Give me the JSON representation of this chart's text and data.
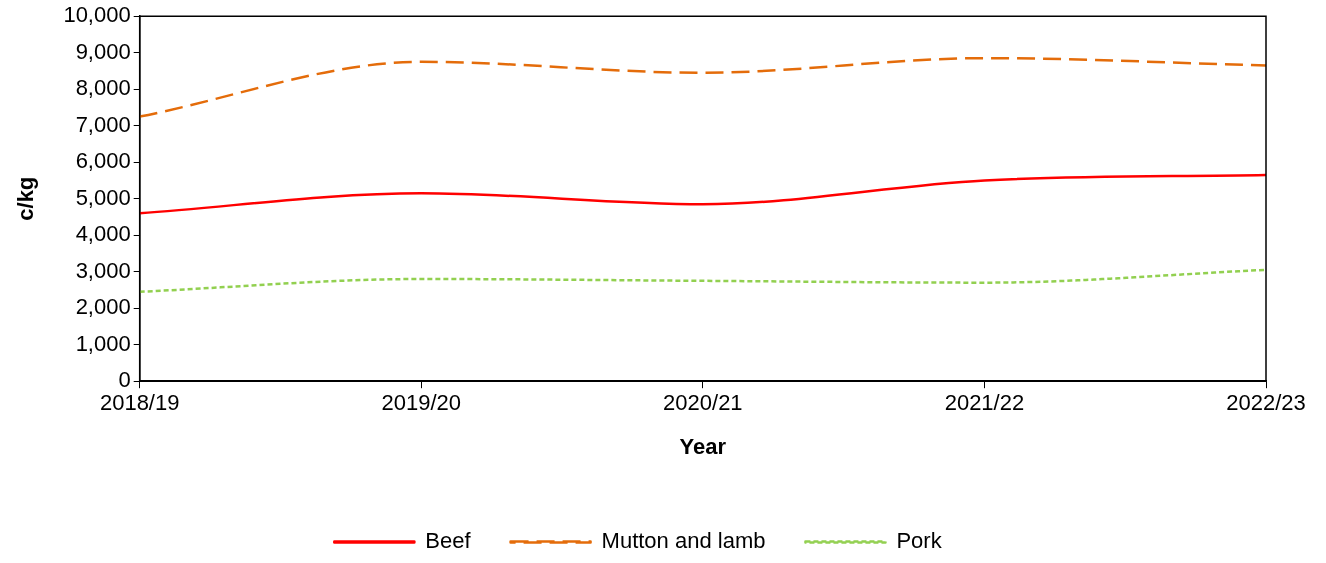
{
  "chart_data": {
    "type": "line",
    "xlabel": "Year",
    "ylabel": "c/kg",
    "categories": [
      "2018/19",
      "2019/20",
      "2020/21",
      "2021/22",
      "2022/23"
    ],
    "series": [
      {
        "name": "Beef",
        "color": "#ff0000",
        "line_style": "solid",
        "values": [
          4600,
          5150,
          4850,
          5500,
          5650
        ]
      },
      {
        "name": "Mutton and lamb",
        "color": "#e46c0a",
        "line_style": "dashed",
        "values": [
          7250,
          8750,
          8450,
          8850,
          8650
        ]
      },
      {
        "name": "Pork",
        "color": "#92d050",
        "line_style": "dotted",
        "values": [
          2450,
          2800,
          2750,
          2700,
          3050
        ]
      }
    ],
    "ylim": [
      0,
      10000
    ],
    "yticks": [
      0,
      {
        "value": 1000,
        "label": "1,000"
      },
      {
        "value": 2000,
        "label": "2,000"
      },
      {
        "value": 3000,
        "label": "3,000"
      },
      {
        "value": 4000,
        "label": "4,000"
      },
      {
        "value": 5000,
        "label": "5,000"
      },
      {
        "value": 6000,
        "label": "6,000"
      },
      {
        "value": 7000,
        "label": "7,000"
      },
      {
        "value": 8000,
        "label": "8,000"
      },
      {
        "value": 9000,
        "label": "9,000"
      },
      {
        "value": 10000,
        "label": "10,000"
      }
    ],
    "grid": false,
    "legend": "bottom",
    "marker": "none"
  }
}
